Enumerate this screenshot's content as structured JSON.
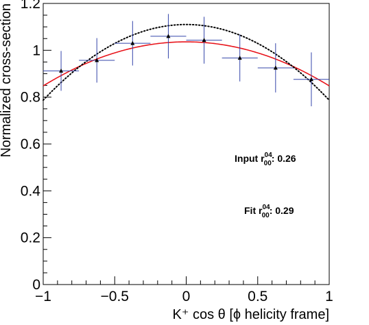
{
  "chart_data": {
    "type": "scatter",
    "title": "",
    "xlabel": "K⁺ cos θ [ϕ helicity frame]",
    "ylabel": "Normalized cross-section",
    "xlim": [
      -1,
      1
    ],
    "ylim": [
      0,
      1.2
    ],
    "x_ticks": [
      {
        "value": -1,
        "label": "−1"
      },
      {
        "value": -0.5,
        "label": "−0.5"
      },
      {
        "value": 0,
        "label": "0"
      },
      {
        "value": 0.5,
        "label": "0.5"
      },
      {
        "value": 1,
        "label": "1"
      }
    ],
    "y_ticks": [
      {
        "value": 0,
        "label": "0"
      },
      {
        "value": 0.2,
        "label": "0.2"
      },
      {
        "value": 0.4,
        "label": "0.4"
      },
      {
        "value": 0.6,
        "label": "0.6"
      },
      {
        "value": 0.8,
        "label": "0.8"
      },
      {
        "value": 1.0,
        "label": "1"
      },
      {
        "value": 1.2,
        "label": "1.2"
      }
    ],
    "grid": false,
    "series": [
      {
        "kind": "points-with-errors",
        "color": "#000000",
        "error_color": "#3344aa",
        "points": [
          {
            "x": -0.875,
            "y": 0.912,
            "xerr": 0.125,
            "yerr": 0.085
          },
          {
            "x": -0.625,
            "y": 0.957,
            "xerr": 0.125,
            "yerr": 0.095
          },
          {
            "x": -0.375,
            "y": 1.03,
            "xerr": 0.125,
            "yerr": 0.095
          },
          {
            "x": -0.125,
            "y": 1.06,
            "xerr": 0.125,
            "yerr": 0.095
          },
          {
            "x": 0.125,
            "y": 1.043,
            "xerr": 0.125,
            "yerr": 0.1
          },
          {
            "x": 0.375,
            "y": 0.967,
            "xerr": 0.125,
            "yerr": 0.1
          },
          {
            "x": 0.625,
            "y": 0.925,
            "xerr": 0.125,
            "yerr": 0.105
          },
          {
            "x": 0.875,
            "y": 0.876,
            "xerr": 0.125,
            "yerr": 0.115
          }
        ]
      },
      {
        "kind": "curve",
        "color": "#e8141b",
        "style": "solid",
        "x": [
          -1,
          -0.75,
          -0.5,
          -0.25,
          0,
          0.25,
          0.5,
          0.75,
          1
        ],
        "y": [
          0.848,
          0.928,
          0.988,
          1.024,
          1.036,
          1.024,
          0.988,
          0.928,
          0.848
        ]
      },
      {
        "kind": "curve",
        "color": "#000000",
        "style": "dotted",
        "x": [
          -1,
          -0.75,
          -0.5,
          -0.25,
          0,
          0.25,
          0.5,
          0.75,
          1
        ],
        "y": [
          0.787,
          0.929,
          1.03,
          1.09,
          1.11,
          1.09,
          1.03,
          0.929,
          0.787
        ]
      }
    ],
    "annotations": [
      {
        "prefix": "Input r",
        "sup": "04",
        "sub": "00",
        "suffix": ":  0.26"
      },
      {
        "prefix": "Fit r",
        "sup": "04",
        "sub": "00",
        "suffix": ":  0.29"
      }
    ]
  }
}
